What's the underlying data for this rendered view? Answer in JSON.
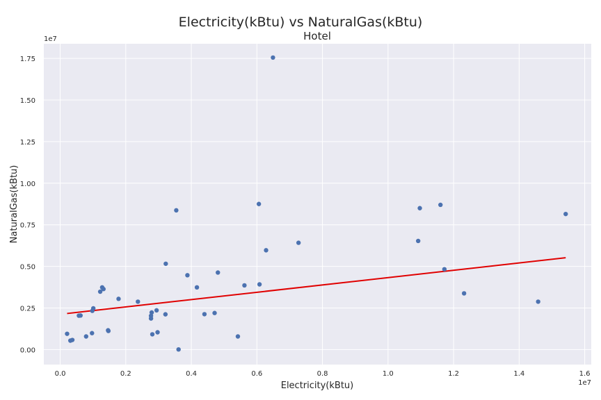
{
  "chart_data": {
    "type": "scatter",
    "title": "Electricity(kBtu) vs NaturalGas(kBtu)",
    "subtitle": "Hotel",
    "xlabel": "Electricity(kBtu)",
    "ylabel": "NaturalGas(kBtu)",
    "x_offset_label": "1e7",
    "y_offset_label": "1e7",
    "xlim": [
      -0.05,
      1.62
    ],
    "ylim": [
      -0.09,
      1.838
    ],
    "x_ticks": [
      0.0,
      0.2,
      0.4,
      0.6,
      0.8,
      1.0,
      1.2,
      1.4,
      1.6
    ],
    "x_tick_labels": [
      "0.0",
      "0.2",
      "0.4",
      "0.6",
      "0.8",
      "1.0",
      "1.2",
      "1.4",
      "1.6"
    ],
    "y_ticks": [
      0.0,
      0.25,
      0.5,
      0.75,
      1.0,
      1.25,
      1.5,
      1.75
    ],
    "y_tick_labels": [
      "0.00",
      "0.25",
      "0.50",
      "0.75",
      "1.00",
      "1.25",
      "1.50",
      "1.75"
    ],
    "grid": true,
    "colors": {
      "background": "#eaeaf2",
      "grid": "#ffffff",
      "points": "#4c72b0",
      "trendline": "#e00000"
    },
    "series": [
      {
        "points": [
          [
            0.021,
            0.095
          ],
          [
            0.031,
            0.054
          ],
          [
            0.037,
            0.058
          ],
          [
            0.057,
            0.204
          ],
          [
            0.062,
            0.205
          ],
          [
            0.079,
            0.079
          ],
          [
            0.097,
            0.099
          ],
          [
            0.098,
            0.233
          ],
          [
            0.101,
            0.248
          ],
          [
            0.122,
            0.348
          ],
          [
            0.128,
            0.374
          ],
          [
            0.132,
            0.364
          ],
          [
            0.146,
            0.116
          ],
          [
            0.147,
            0.112
          ],
          [
            0.178,
            0.305
          ],
          [
            0.237,
            0.288
          ],
          [
            0.277,
            0.187
          ],
          [
            0.277,
            0.203
          ],
          [
            0.279,
            0.223
          ],
          [
            0.281,
            0.092
          ],
          [
            0.294,
            0.236
          ],
          [
            0.297,
            0.104
          ],
          [
            0.321,
            0.212
          ],
          [
            0.322,
            0.516
          ],
          [
            0.354,
            0.837
          ],
          [
            0.361,
            0.001
          ],
          [
            0.388,
            0.447
          ],
          [
            0.417,
            0.374
          ],
          [
            0.44,
            0.213
          ],
          [
            0.471,
            0.22
          ],
          [
            0.481,
            0.463
          ],
          [
            0.542,
            0.079
          ],
          [
            0.562,
            0.386
          ],
          [
            0.606,
            0.875
          ],
          [
            0.608,
            0.392
          ],
          [
            0.628,
            0.597
          ],
          [
            0.649,
            1.755
          ],
          [
            0.727,
            0.642
          ],
          [
            1.092,
            0.653
          ],
          [
            1.097,
            0.85
          ],
          [
            1.16,
            0.87
          ],
          [
            1.172,
            0.483
          ],
          [
            1.232,
            0.338
          ],
          [
            1.458,
            0.288
          ],
          [
            1.542,
            0.815
          ]
        ]
      }
    ],
    "trendline": {
      "x": [
        0.021,
        1.542
      ],
      "y": [
        0.217,
        0.552
      ]
    }
  }
}
